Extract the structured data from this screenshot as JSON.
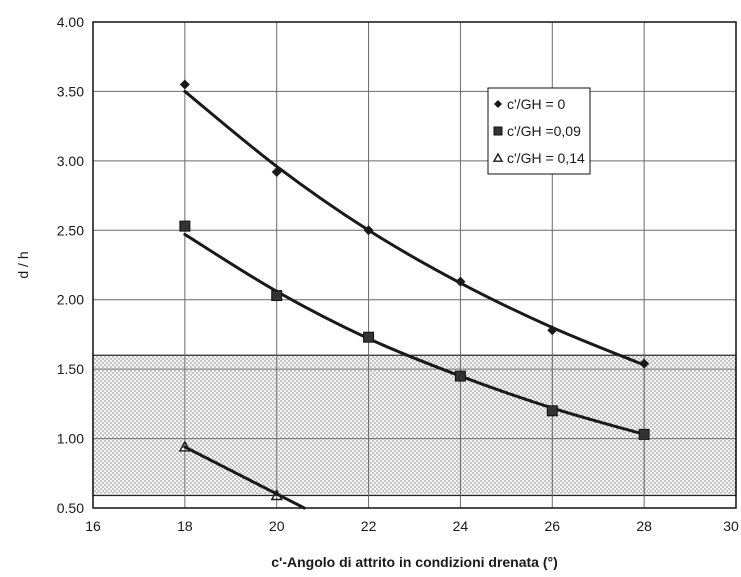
{
  "chart_data": {
    "type": "line",
    "title": "",
    "xlabel": "c'-Angolo di attrito in condizioni drenata (°)",
    "ylabel": "d / h",
    "xlim": [
      16,
      30
    ],
    "ylim": [
      0.5,
      4.0
    ],
    "x_ticks": [
      16,
      18,
      20,
      22,
      24,
      26,
      28,
      30
    ],
    "x_tick_labels": [
      "16",
      "18",
      "20",
      "22",
      "24",
      "26",
      "28",
      "30"
    ],
    "y_ticks": [
      0.5,
      1.0,
      1.5,
      2.0,
      2.5,
      3.0,
      3.5,
      4.0
    ],
    "y_tick_labels": [
      "0.50",
      "1.00",
      "1.50",
      "2.00",
      "2.50",
      "3.00",
      "3.50",
      "4.00"
    ],
    "grid": true,
    "legend_position": "top-right",
    "shaded_band": {
      "y_from": 0.59,
      "y_to": 1.6,
      "pattern": "dotted"
    },
    "series": [
      {
        "name": "c'/GH = 0",
        "marker": "diamond",
        "x": [
          18,
          20,
          22,
          24,
          26,
          28
        ],
        "y": [
          3.55,
          2.92,
          2.5,
          2.13,
          1.78,
          1.54
        ],
        "fit": [
          3.5,
          2.96,
          2.5,
          2.12,
          1.8,
          1.53
        ]
      },
      {
        "name": "c'/GH =0,09",
        "marker": "square",
        "x": [
          18,
          20,
          22,
          24,
          26,
          28
        ],
        "y": [
          2.53,
          2.03,
          1.73,
          1.45,
          1.2,
          1.03
        ],
        "fit": [
          2.47,
          2.06,
          1.72,
          1.45,
          1.22,
          1.03
        ]
      },
      {
        "name": "c'/GH = 0,14",
        "marker": "triangle",
        "x": [
          18,
          20
        ],
        "y": [
          0.94,
          0.59
        ],
        "fit_x": [
          18,
          20.6
        ],
        "fit": [
          0.94,
          0.5
        ]
      }
    ]
  }
}
